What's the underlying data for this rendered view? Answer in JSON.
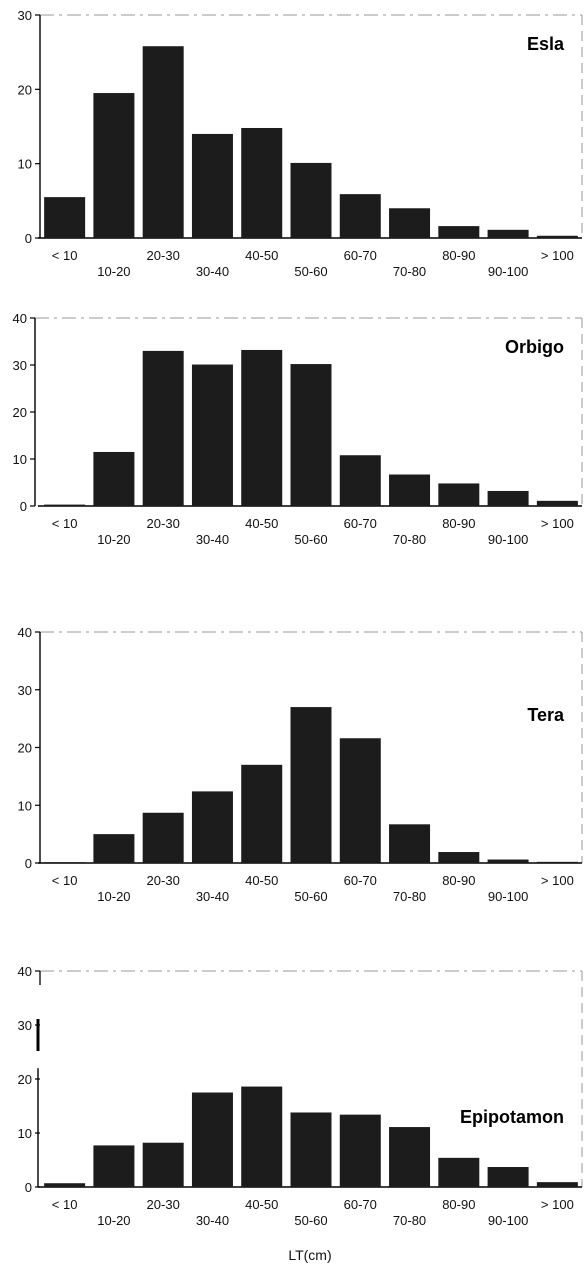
{
  "colors": {
    "bar": "#1c1c1c",
    "axis": "#000000",
    "frame": "#9a9a9a",
    "background": "#ffffff"
  },
  "chart_data": [
    {
      "type": "bar",
      "title": "Esla",
      "categories": [
        "< 10",
        "10-20",
        "20-30",
        "30-40",
        "40-50",
        "50-60",
        "60-70",
        "70-80",
        "80-90",
        "90-100",
        "> 100"
      ],
      "values": [
        5.5,
        19.5,
        25.8,
        14,
        14.8,
        10.1,
        5.9,
        4,
        1.6,
        1.1,
        0.3
      ],
      "yticks": [
        0,
        10,
        20,
        30
      ],
      "ylim": [
        0,
        30
      ],
      "xlabel": "",
      "ylabel": ""
    },
    {
      "type": "bar",
      "title": "Orbigo",
      "categories": [
        "< 10",
        "10-20",
        "20-30",
        "30-40",
        "40-50",
        "50-60",
        "60-70",
        "70-80",
        "80-90",
        "90-100",
        "> 100"
      ],
      "values": [
        0.3,
        11.5,
        33,
        30.1,
        33.2,
        30.2,
        10.8,
        6.7,
        4.8,
        3.2,
        1.1
      ],
      "yticks": [
        0,
        10,
        20,
        30,
        40
      ],
      "ylim": [
        0,
        40
      ],
      "xlabel": "",
      "ylabel": ""
    },
    {
      "type": "bar",
      "title": "Tera",
      "categories": [
        "< 10",
        "10-20",
        "20-30",
        "30-40",
        "40-50",
        "50-60",
        "60-70",
        "70-80",
        "80-90",
        "90-100",
        "> 100"
      ],
      "values": [
        0,
        5,
        8.7,
        12.4,
        17,
        27,
        21.6,
        6.7,
        1.9,
        0.6,
        0.2
      ],
      "yticks": [
        0,
        10,
        20,
        30,
        40
      ],
      "ylim": [
        0,
        40
      ],
      "xlabel": "",
      "ylabel": ""
    },
    {
      "type": "bar",
      "title": "Epipotamon",
      "categories": [
        "< 10",
        "10-20",
        "20-30",
        "30-40",
        "40-50",
        "50-60",
        "60-70",
        "70-80",
        "80-90",
        "90-100",
        "> 100"
      ],
      "values": [
        0.7,
        7.7,
        8.2,
        17.5,
        18.6,
        13.8,
        13.4,
        11.1,
        5.4,
        3.7,
        0.9
      ],
      "yticks": [
        0,
        10,
        20,
        30,
        40
      ],
      "ylim": [
        0,
        40
      ],
      "xlabel": "LT(cm)",
      "ylabel": ""
    }
  ]
}
